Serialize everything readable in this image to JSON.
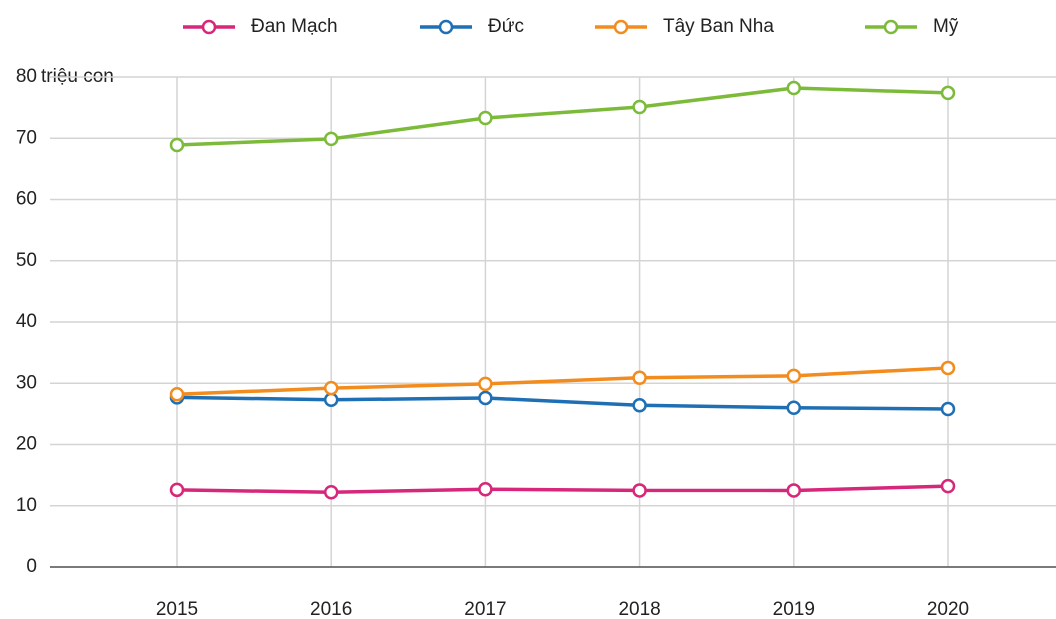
{
  "chart_data": {
    "type": "line",
    "y_label": "triệu con",
    "categories": [
      "2015",
      "2016",
      "2017",
      "2018",
      "2019",
      "2020"
    ],
    "series": [
      {
        "name": "Đan Mạch",
        "color": "#d6277a",
        "values": [
          12.6,
          12.2,
          12.7,
          12.5,
          12.5,
          13.2
        ]
      },
      {
        "name": "Đức",
        "color": "#1f6fb5",
        "values": [
          27.7,
          27.3,
          27.6,
          26.4,
          26.0,
          25.8
        ]
      },
      {
        "name": "Tây Ban Nha",
        "color": "#f28c1e",
        "values": [
          28.2,
          29.2,
          29.9,
          30.9,
          31.2,
          32.5
        ]
      },
      {
        "name": "Mỹ",
        "color": "#7cbb3a",
        "values": [
          68.9,
          69.9,
          73.3,
          75.1,
          78.2,
          77.4
        ]
      }
    ],
    "ylim": [
      0,
      80
    ],
    "yticks": [
      0,
      10,
      20,
      30,
      40,
      50,
      60,
      70,
      80
    ],
    "grid": true
  }
}
